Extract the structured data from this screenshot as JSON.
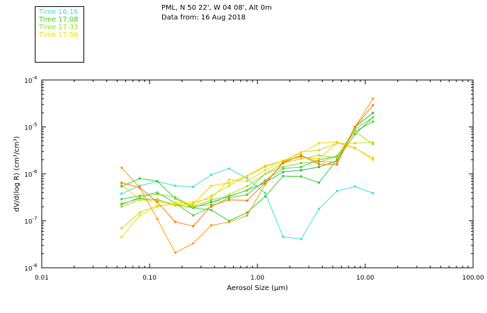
{
  "header": {
    "station": "PML, N 50 22', W 04 08', Alt 0m",
    "data_from": "Data from: 16 Aug 2018"
  },
  "legend": [
    {
      "label": "Time 16:16",
      "color": "#33e6cc"
    },
    {
      "label": "Time 17:08",
      "color": "#33cc33"
    },
    {
      "label": "Time 17:33",
      "color": "#99dd22"
    },
    {
      "label": "Time 17:56",
      "color": "#eedd00"
    }
  ],
  "chart_data": {
    "type": "line",
    "title": "PML, N 50 22', W 04 08', Alt 0m",
    "subtitle": "Data from: 16 Aug 2018",
    "xlabel": "Aerosol Size (μm)",
    "ylabel": "dV/d(log R) (cm³/cm³)",
    "xscale": "log",
    "yscale": "log",
    "xlim": [
      0.01,
      100
    ],
    "ylim": [
      1e-08,
      0.0001
    ],
    "x_tick_labels": [
      "0.01",
      "0.10",
      "1.00",
      "10.00",
      "100.00"
    ],
    "y_tick_labels": [
      {
        "base": "10",
        "exp": "-8"
      },
      {
        "base": "10",
        "exp": "-7"
      },
      {
        "base": "10",
        "exp": "-6"
      },
      {
        "base": "10",
        "exp": "-5"
      },
      {
        "base": "10",
        "exp": "-4"
      }
    ],
    "x": [
      0.055,
      0.081,
      0.118,
      0.173,
      0.254,
      0.373,
      0.547,
      0.803,
      1.18,
      1.73,
      2.54,
      3.72,
      5.47,
      8.03,
      11.8
    ],
    "series": [
      {
        "name": "Time 16:16",
        "color": "#33e6cc",
        "values": [
          3.8e-07,
          5.6e-07,
          6.9e-07,
          5.6e-07,
          5.3e-07,
          9.6e-07,
          1.3e-06,
          8e-07,
          3.9e-07,
          4.6e-08,
          4.1e-08,
          1.8e-07,
          4.3e-07,
          5.4e-07,
          3.9e-07
        ]
      },
      {
        "name": "Time 17:08",
        "color": "#33cc33",
        "values": [
          5.4e-07,
          8e-07,
          7e-07,
          3e-07,
          1.9e-07,
          1.7e-07,
          1e-07,
          1.5e-07,
          3.3e-07,
          9e-07,
          8.8e-07,
          6.5e-07,
          2e-06,
          7e-06,
          1.6e-05
        ]
      },
      {
        "name": "Time 17:08",
        "color": "#22bb44",
        "values": [
          2.3e-07,
          3e-07,
          2.8e-07,
          2.2e-07,
          1.9e-07,
          2.5e-07,
          3.3e-07,
          4.5e-07,
          6.5e-07,
          1.1e-06,
          1.2e-06,
          1.4e-06,
          1.9e-06,
          1e-05,
          2e-05
        ]
      },
      {
        "name": "Time 17:08",
        "color": "#44cc44",
        "values": [
          2.9e-07,
          3.4e-07,
          4e-07,
          2.4e-07,
          1.3e-07,
          2e-07,
          3.1e-07,
          3.6e-07,
          7.3e-07,
          1.3e-06,
          1.4e-06,
          2e-06,
          2.4e-06,
          8e-06,
          1.3e-05
        ]
      },
      {
        "name": "Time 17:33",
        "color": "#88d62a",
        "values": [
          2.2e-07,
          3.2e-07,
          3.7e-07,
          3.2e-07,
          2e-07,
          2.8e-07,
          3.4e-07,
          4.4e-07,
          1e-06,
          1.4e-06,
          1.7e-06,
          1.8e-06,
          2.3e-06,
          9e-06,
          1.6e-05
        ]
      },
      {
        "name": "Time 17:33",
        "color": "#aadd22",
        "values": [
          2e-07,
          2.8e-07,
          2.9e-07,
          2.1e-07,
          2e-07,
          2.2e-07,
          3.6e-07,
          5.5e-07,
          1e-06,
          1.7e-06,
          2.1e-06,
          2.5e-06,
          2.2e-06,
          8e-06,
          4.3e-06
        ]
      },
      {
        "name": "Time 17:56",
        "color": "#ccdd11",
        "values": [
          7e-08,
          1.5e-07,
          2.1e-07,
          2.3e-07,
          2.2e-07,
          3.4e-07,
          5.6e-07,
          9e-07,
          1.4e-06,
          1.9e-06,
          2.9e-06,
          3.2e-06,
          4.5e-06,
          4.5e-06,
          4.7e-06
        ]
      },
      {
        "name": "Time 17:56",
        "color": "#eedd00",
        "values": [
          4.5e-08,
          1.3e-07,
          2e-07,
          2.4e-07,
          2.5e-07,
          3e-07,
          7.5e-07,
          7e-07,
          1.2e-06,
          1.8e-06,
          2.8e-06,
          4.5e-06,
          4.8e-06,
          3.6e-06,
          2e-06
        ]
      },
      {
        "name": "Time 17:56",
        "color": "#ffcc00",
        "values": [
          6e-07,
          2.8e-07,
          2.6e-07,
          2.2e-07,
          2.3e-07,
          5.6e-07,
          6.4e-07,
          9.1e-07,
          1.5e-06,
          1.9e-06,
          2.3e-06,
          2.1e-06,
          4.6e-06,
          3.5e-06,
          2.2e-06
        ]
      },
      {
        "name": "Time 17:56",
        "color": "#ff9900",
        "values": [
          1.35e-06,
          5.1e-07,
          1.1e-07,
          2.1e-08,
          3.3e-08,
          8e-08,
          9.4e-08,
          1.3e-07,
          6e-07,
          1.8e-06,
          2.4e-06,
          1.8e-06,
          1.8e-06,
          1e-05,
          4e-05
        ]
      },
      {
        "name": "Time 17:56",
        "color": "#ff7700",
        "values": [
          6.5e-07,
          5.1e-07,
          2.5e-07,
          9.5e-08,
          7.7e-08,
          2.1e-07,
          2.8e-07,
          2.7e-07,
          6.5e-07,
          1.7e-06,
          2.5e-06,
          1.6e-06,
          1.6e-06,
          1e-05,
          2.9e-05
        ]
      }
    ]
  }
}
